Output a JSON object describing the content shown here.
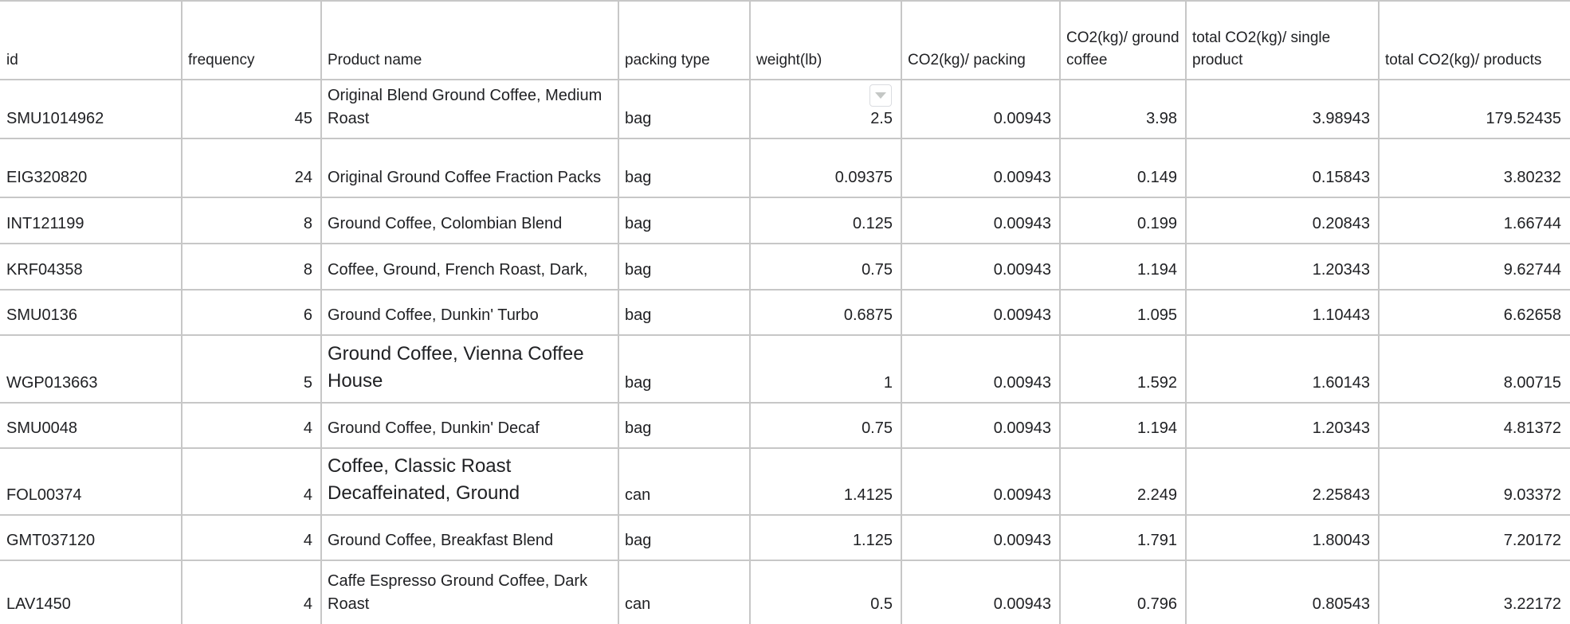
{
  "columns": [
    "id",
    "frequency",
    "Product name",
    "packing type",
    "weight(lb)",
    "CO2(kg)/ packing",
    "CO2(kg)/ ground coffee",
    "total CO2(kg)/ single product",
    "total CO2(kg)/ products"
  ],
  "rows": [
    [
      "SMU1014962",
      "45",
      "Original Blend Ground Coffee, Medium Roast",
      "bag",
      "2.5",
      "0.00943",
      "3.98",
      "3.98943",
      "179.52435"
    ],
    [
      "EIG320820",
      "24",
      "Original Ground Coffee Fraction Packs",
      "bag",
      "0.09375",
      "0.00943",
      "0.149",
      "0.15843",
      "3.80232"
    ],
    [
      "INT121199",
      "8",
      "Ground Coffee, Colombian Blend",
      "bag",
      "0.125",
      "0.00943",
      "0.199",
      "0.20843",
      "1.66744"
    ],
    [
      "KRF04358",
      "8",
      "Coffee, Ground, French Roast, Dark,",
      "bag",
      "0.75",
      "0.00943",
      "1.194",
      "1.20343",
      "9.62744"
    ],
    [
      "SMU0136",
      "6",
      "Ground Coffee, Dunkin' Turbo",
      "bag",
      "0.6875",
      "0.00943",
      "1.095",
      "1.10443",
      "6.62658"
    ],
    [
      "WGP013663",
      "5",
      "Ground Coffee, Vienna Coffee House",
      "bag",
      "1",
      "0.00943",
      "1.592",
      "1.60143",
      "8.00715"
    ],
    [
      "SMU0048",
      "4",
      "Ground Coffee, Dunkin' Decaf",
      "bag",
      "0.75",
      "0.00943",
      "1.194",
      "1.20343",
      "4.81372"
    ],
    [
      "FOL00374",
      "4",
      "Coffee, Classic Roast Decaffeinated, Ground",
      "can",
      "1.4125",
      "0.00943",
      "2.249",
      "2.25843",
      "9.03372"
    ],
    [
      "GMT037120",
      "4",
      "Ground Coffee, Breakfast Blend",
      "bag",
      "1.125",
      "0.00943",
      "1.791",
      "1.80043",
      "7.20172"
    ],
    [
      "LAV1450",
      "4",
      "Caffe Espresso Ground Coffee, Dark Roast",
      "can",
      "0.5",
      "0.00943",
      "0.796",
      "0.80543",
      "3.22172"
    ]
  ],
  "filter_icon": "chevron-down-icon",
  "colors": {
    "grid": "#c7c7c7",
    "text": "#202124",
    "background": "#ffffff"
  }
}
